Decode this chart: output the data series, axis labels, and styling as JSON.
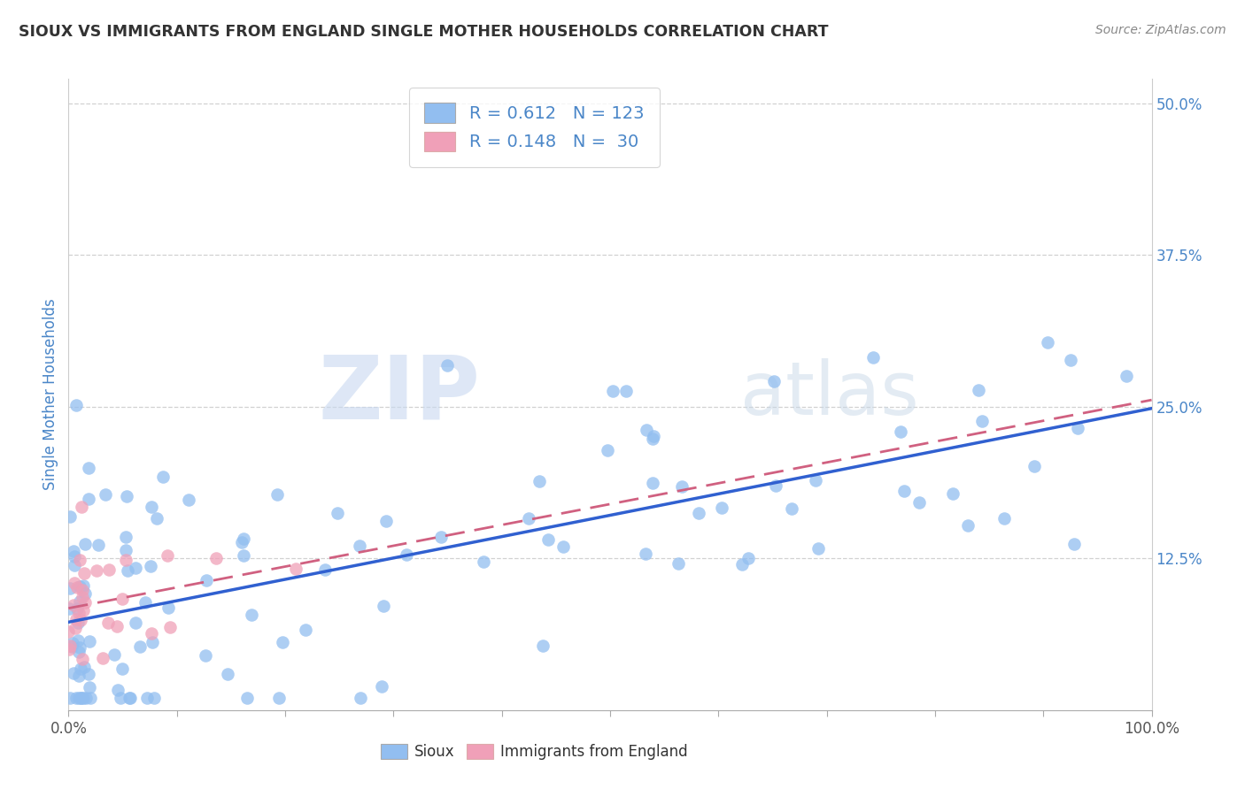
{
  "title": "SIOUX VS IMMIGRANTS FROM ENGLAND SINGLE MOTHER HOUSEHOLDS CORRELATION CHART",
  "source_text": "Source: ZipAtlas.com",
  "ylabel": "Single Mother Households",
  "sioux_color": "#92bef0",
  "england_color": "#f0a0b8",
  "sioux_trendline_color": "#3060d0",
  "england_trendline_color": "#d06080",
  "background_color": "#ffffff",
  "grid_color": "#cccccc",
  "title_color": "#333333",
  "label_color": "#4a86c8",
  "sioux_R": 0.612,
  "sioux_N": 123,
  "england_R": 0.148,
  "england_N": 30,
  "watermark_zip": "ZIP",
  "watermark_atlas": "atlas",
  "ytick_positions": [
    0.125,
    0.25,
    0.375,
    0.5
  ],
  "ytick_labels": [
    "12.5%",
    "25.0%",
    "37.5%",
    "50.0%"
  ],
  "xlim": [
    0.0,
    1.0
  ],
  "ylim": [
    0.0,
    0.52
  ]
}
